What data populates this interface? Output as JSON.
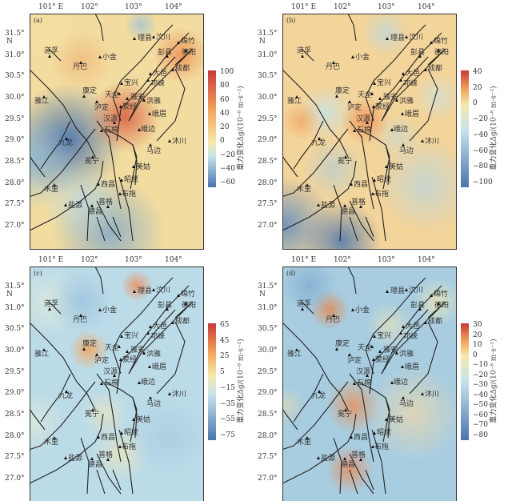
{
  "axes": {
    "lon_labels": [
      "101° E",
      "102°",
      "103°",
      "104°"
    ],
    "lat_labels": [
      "31.5°",
      "31.0°",
      "30.5°",
      "30.0°",
      "29.5°",
      "29.0°",
      "28.5°",
      "28.0°",
      "27.5°",
      "27.0°"
    ],
    "lat_unit": "N"
  },
  "cities": [
    "理县",
    "汶川",
    "绵竹",
    "彭县",
    "德阳",
    "道孚",
    "小金",
    "丹巴",
    "成都",
    "大邑",
    "宝兴",
    "邛崃",
    "康定",
    "天全",
    "雅安",
    "洪雅",
    "雅江",
    "泸定",
    "荥经",
    "峨眉",
    "汉源",
    "石棉",
    "峨边",
    "九龙",
    "沐川",
    "马边",
    "冕宁",
    "美姑",
    "昭觉",
    "西昌",
    "木里",
    "布拖",
    "普格",
    "盐源",
    "德昌"
  ],
  "colorbar_title": "重力变化Δg/(10⁻⁸ m·s⁻²)",
  "panels": [
    {
      "label": "(a)",
      "ticks": [
        "100",
        "80",
        "60",
        "40",
        "20",
        "0",
        "−20",
        "−40",
        "−60"
      ],
      "zero_fraction": 0.62
    },
    {
      "label": "(b)",
      "ticks": [
        "40",
        "20",
        "0",
        "−20",
        "−40",
        "−60",
        "−80",
        "−100"
      ],
      "zero_fraction": 0.3
    },
    {
      "label": "(c)",
      "ticks": [
        "65",
        "45",
        "25",
        "5",
        "−15",
        "−35",
        "−55",
        "−75"
      ],
      "zero_fraction": 0.45
    },
    {
      "label": "(d)",
      "ticks": [
        "30",
        "20",
        "10",
        "0",
        "−10",
        "−20",
        "−30",
        "−40",
        "−50",
        "−60",
        "−70",
        "−80"
      ],
      "zero_fraction": 0.28
    }
  ],
  "colors": {
    "high": "#c8383a",
    "mid": "#f2a55a",
    "zero": "#f6e9ad",
    "low1": "#c6e3ec",
    "low": "#4a74ad"
  }
}
